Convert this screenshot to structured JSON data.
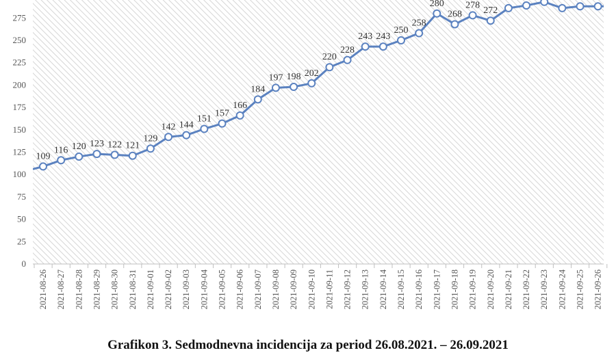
{
  "caption": "Grafikon 3. Sedmodnevna incidencija za period 26.08.2021. – 26.09.2021",
  "colors": {
    "line": "#5b82c0",
    "marker_fill": "#ffffff",
    "hatch": "#d9d9d9",
    "axis_text": "#555555",
    "label_text": "#333333"
  },
  "chart_data": {
    "type": "line",
    "title": "",
    "xlabel": "",
    "ylabel": "",
    "ylim": [
      0,
      285
    ],
    "yticks": [
      0,
      25,
      50,
      75,
      100,
      125,
      150,
      175,
      200,
      225,
      250,
      275
    ],
    "grid": false,
    "categories": [
      "2021-08-26",
      "2021-08-27",
      "2021-08-28",
      "2021-08-29",
      "2021-08-30",
      "2021-08-31",
      "2021-09-01",
      "2021-09-02",
      "2021-09-03",
      "2021-09-04",
      "2021-09-05",
      "2021-09-06",
      "2021-09-07",
      "2021-09-08",
      "2021-09-09",
      "2021-09-10",
      "2021-09-11",
      "2021-09-12",
      "2021-09-13",
      "2021-09-14",
      "2021-09-15",
      "2021-09-16",
      "2021-09-17",
      "2021-09-18",
      "2021-09-19",
      "2021-09-20",
      "2021-09-21",
      "2021-09-22",
      "2021-09-23",
      "2021-09-24",
      "2021-09-25",
      "2021-09-26"
    ],
    "values": [
      109,
      116,
      120,
      123,
      122,
      121,
      129,
      142,
      144,
      151,
      157,
      166,
      184,
      197,
      198,
      202,
      220,
      228,
      243,
      243,
      250,
      258,
      280,
      268,
      278,
      272,
      286,
      289,
      293,
      286,
      288,
      288
    ],
    "labels": [
      "109",
      "116",
      "120",
      "123",
      "122",
      "121",
      "129",
      "142",
      "144",
      "151",
      "157",
      "166",
      "184",
      "197",
      "198",
      "202",
      "220",
      "228",
      "243",
      "243",
      "250",
      "258",
      "280",
      "268",
      "278",
      "272",
      "",
      "",
      "",
      "",
      "",
      ""
    ],
    "leading_value": 106,
    "trailing_value": 288
  }
}
